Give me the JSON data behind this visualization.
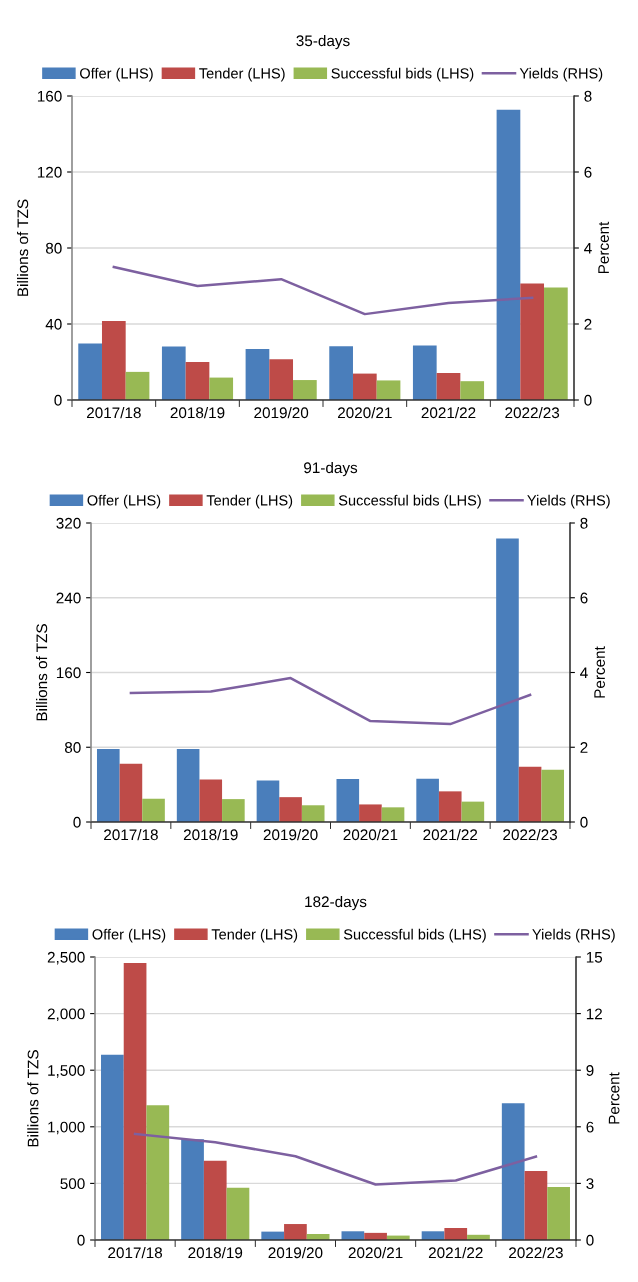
{
  "chart_data": [
    {
      "type": "bar",
      "title": "35-days",
      "ylabel": "Billions of TZS",
      "y2label": "Percent",
      "categories": [
        "2017/18",
        "2018/19",
        "2019/20",
        "2020/21",
        "2021/22",
        "2022/23"
      ],
      "series": [
        {
          "name": "Offer (LHS)",
          "color": "#4a7ebb",
          "values": [
            29.8,
            28.1,
            26.8,
            28.3,
            28.7,
            152.7
          ]
        },
        {
          "name": "Tender (LHS)",
          "color": "#be4b48",
          "values": [
            41.6,
            20.0,
            21.4,
            13.9,
            14.2,
            61.3
          ]
        },
        {
          "name": "Successful bids (LHS)",
          "color": "#98b954",
          "values": [
            14.8,
            11.8,
            10.5,
            10.3,
            9.9,
            59.2
          ]
        },
        {
          "name": "Yields (RHS)",
          "type": "line",
          "axis": "y2",
          "color": "#7d60a0",
          "values": [
            3.5,
            3.0,
            3.18,
            2.26,
            2.55,
            2.69
          ]
        }
      ],
      "ylim": [
        0,
        160
      ],
      "yticks": [
        0,
        40,
        80,
        120,
        160
      ],
      "y2lim": [
        0,
        8
      ],
      "y2ticks": [
        0,
        2,
        4,
        6,
        8
      ],
      "grid": "y",
      "legend": "top",
      "marker": "none",
      "line_style": "solid"
    },
    {
      "type": "bar",
      "title": "91-days",
      "ylabel": "Billions of TZS",
      "y2label": "Percent",
      "categories": [
        "2017/18",
        "2018/19",
        "2019/20",
        "2020/21",
        "2021/22",
        "2022/23"
      ],
      "series": [
        {
          "name": "Offer (LHS)",
          "color": "#4a7ebb",
          "values": [
            78.2,
            78.2,
            44.5,
            45.9,
            46.3,
            303.5
          ]
        },
        {
          "name": "Tender (LHS)",
          "color": "#be4b48",
          "values": [
            62.4,
            45.4,
            26.6,
            18.8,
            32.8,
            59.0
          ]
        },
        {
          "name": "Successful bids (LHS)",
          "color": "#98b954",
          "values": [
            24.9,
            24.5,
            17.9,
            15.7,
            21.8,
            55.9
          ]
        },
        {
          "name": "Yields (RHS)",
          "type": "line",
          "axis": "y2",
          "color": "#7d60a0",
          "values": [
            3.45,
            3.49,
            3.85,
            2.7,
            2.62,
            3.4
          ]
        }
      ],
      "ylim": [
        0,
        320
      ],
      "yticks": [
        0,
        80,
        160,
        240,
        320
      ],
      "y2lim": [
        0,
        8
      ],
      "y2ticks": [
        0,
        2,
        4,
        6,
        8
      ],
      "grid": "y",
      "legend": "top",
      "marker": "none",
      "line_style": "solid"
    },
    {
      "type": "bar",
      "title": "182-days",
      "ylabel": "Billions of TZS",
      "y2label": "Percent",
      "categories": [
        "2017/18",
        "2018/19",
        "2019/20",
        "2020/21",
        "2021/22",
        "2022/23"
      ],
      "series": [
        {
          "name": "Offer (LHS)",
          "color": "#4a7ebb",
          "values": [
            1637,
            891,
            74,
            77,
            77,
            1208
          ]
        },
        {
          "name": "Tender (LHS)",
          "color": "#be4b48",
          "values": [
            2447,
            701,
            141,
            63,
            106,
            609
          ]
        },
        {
          "name": "Successful bids (LHS)",
          "color": "#98b954",
          "values": [
            1190,
            461,
            53,
            39,
            46,
            468
          ]
        },
        {
          "name": "Yields (RHS)",
          "type": "line",
          "axis": "y2",
          "color": "#7d60a0",
          "values": [
            5.62,
            5.18,
            4.44,
            2.94,
            3.15,
            4.42
          ]
        }
      ],
      "ylim": [
        0,
        2500
      ],
      "yticks": [
        0,
        500,
        {
          "value": 1000,
          "label": "1,000"
        },
        {
          "value": 1500,
          "label": "1,500"
        },
        {
          "value": 2000,
          "label": "2,000"
        },
        {
          "value": 2500,
          "label": "2,500"
        }
      ],
      "y2lim": [
        0,
        15
      ],
      "y2ticks": [
        0,
        3,
        6,
        9,
        12,
        15
      ],
      "grid": "y",
      "legend": "top",
      "marker": "none",
      "line_style": "solid"
    }
  ]
}
